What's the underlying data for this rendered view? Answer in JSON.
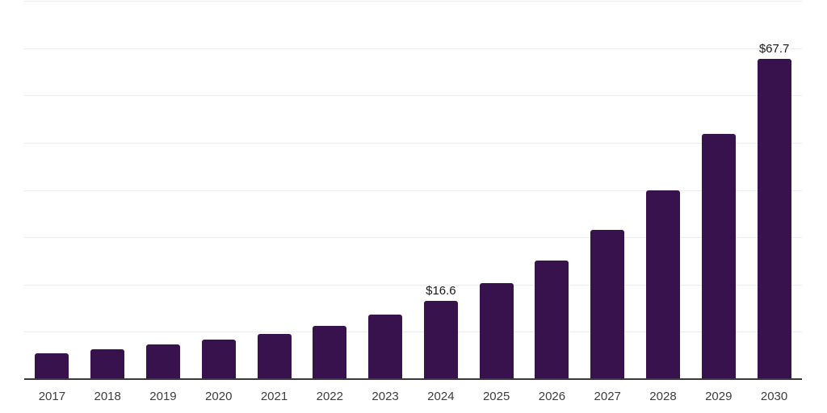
{
  "chart_data": {
    "type": "bar",
    "title": "",
    "xlabel": "",
    "ylabel": "",
    "categories": [
      "2017",
      "2018",
      "2019",
      "2020",
      "2021",
      "2022",
      "2023",
      "2024",
      "2025",
      "2026",
      "2027",
      "2028",
      "2029",
      "2030"
    ],
    "values": [
      5.5,
      6.3,
      7.4,
      8.4,
      9.5,
      11.3,
      13.6,
      16.6,
      20.3,
      25.0,
      31.5,
      40.0,
      51.8,
      67.7
    ],
    "point_labels": [
      "",
      "",
      "",
      "",
      "",
      "",
      "",
      "$16.6",
      "",
      "",
      "",
      "",
      "",
      "$67.7"
    ],
    "ylim": [
      0,
      80
    ],
    "grid_step": 10,
    "grid": true,
    "legend_position": "none",
    "y_axis_tick_labels_visible": false,
    "colors": {
      "bar": "#38124C",
      "gridline": "#ececec",
      "axis_line": "#3a3a3a",
      "tick_label": "#3d3d3d",
      "data_label": "#1a1a1a",
      "background": "#ffffff"
    }
  }
}
